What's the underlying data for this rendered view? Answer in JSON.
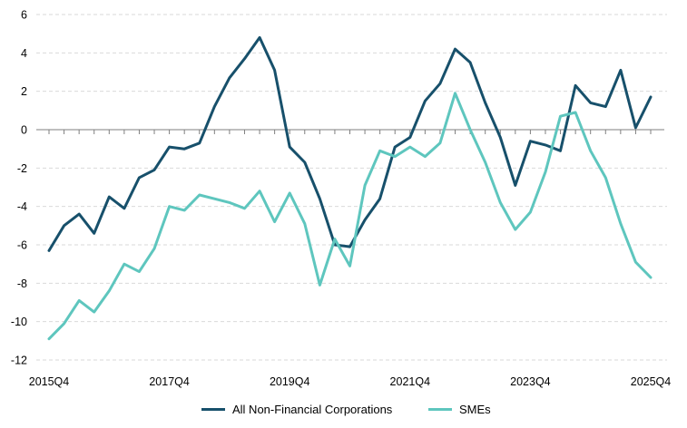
{
  "chart_data": {
    "type": "line",
    "title": "",
    "xlabel": "",
    "ylabel": "",
    "ylim": [
      -12,
      6
    ],
    "y_ticks": [
      "6",
      "4",
      "2",
      "0",
      "-2",
      "-4",
      "-6",
      "-8",
      "-10",
      "-12"
    ],
    "y_tick_values": [
      6,
      4,
      2,
      0,
      -2,
      -4,
      -6,
      -8,
      -10,
      -12
    ],
    "x": [
      "2015Q4",
      "2016Q1",
      "2016Q2",
      "2016Q3",
      "2016Q4",
      "2017Q1",
      "2017Q2",
      "2017Q3",
      "2017Q4",
      "2018Q1",
      "2018Q2",
      "2018Q3",
      "2018Q4",
      "2019Q1",
      "2019Q2",
      "2019Q3",
      "2019Q4",
      "2020Q1",
      "2020Q2",
      "2020Q3",
      "2020Q4",
      "2021Q1",
      "2021Q2",
      "2021Q3",
      "2021Q4",
      "2022Q1",
      "2022Q2",
      "2022Q3",
      "2022Q4",
      "2023Q1",
      "2023Q2",
      "2023Q3",
      "2023Q4",
      "2024Q1",
      "2024Q2",
      "2024Q3",
      "2024Q4",
      "2025Q1",
      "2025Q2",
      "2025Q3",
      "2025Q4"
    ],
    "x_tick_labels": [
      "2015Q4",
      "2017Q4",
      "2019Q4",
      "2021Q4",
      "2023Q4",
      "2025Q4"
    ],
    "grid": "horizontal dashed",
    "legend_position": "bottom",
    "series": [
      {
        "name": "All Non-Financial Corporations",
        "color": "#17506b",
        "values": [
          -6.3,
          -5.0,
          -4.4,
          -5.4,
          -3.5,
          -4.1,
          -2.5,
          -2.1,
          -0.9,
          -1.0,
          -0.7,
          1.2,
          2.7,
          3.7,
          4.8,
          3.1,
          -0.9,
          -1.7,
          -3.6,
          -6.0,
          -6.1,
          -4.7,
          -3.6,
          -0.9,
          -0.4,
          1.5,
          2.4,
          4.2,
          3.5,
          1.4,
          -0.4,
          -2.9,
          -0.6,
          -0.8,
          -1.1,
          2.3,
          1.4,
          1.2,
          3.1,
          0.1,
          1.7
        ]
      },
      {
        "name": "SMEs",
        "color": "#5ec6be",
        "values": [
          -10.9,
          -10.1,
          -8.9,
          -9.5,
          -8.4,
          -7.0,
          -7.4,
          -6.2,
          -4.0,
          -4.2,
          -3.4,
          -3.6,
          -3.8,
          -4.1,
          -3.2,
          -4.8,
          -3.3,
          -4.9,
          -8.1,
          -5.7,
          -7.1,
          -2.9,
          -1.1,
          -1.4,
          -0.9,
          -1.4,
          -0.7,
          1.9,
          0.0,
          -1.7,
          -3.8,
          -5.2,
          -4.3,
          -2.2,
          0.7,
          0.9,
          -1.1,
          -2.5,
          -4.9,
          -6.9,
          -7.7
        ]
      }
    ]
  }
}
